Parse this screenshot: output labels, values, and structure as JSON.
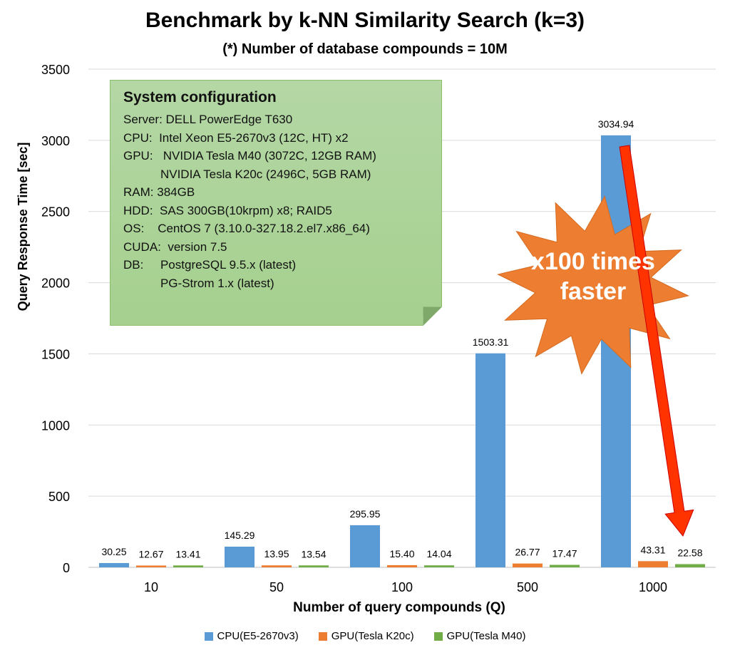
{
  "title": "Benchmark by k-NN Similarity Search (k=3)",
  "subtitle": "(*) Number of database compounds = 10M",
  "config": {
    "heading": "System configuration",
    "lines": [
      {
        "key": "Server: ",
        "value": "DELL PowerEdge T630"
      },
      {
        "key": "CPU:  ",
        "value": "Intel Xeon E5-2670v3 (12C, HT) x2"
      },
      {
        "key": "GPU:   ",
        "value": "NVIDIA Tesla M40 (3072C, 12GB RAM)"
      },
      {
        "key": "           ",
        "value": "NVIDIA Tesla K20c (2496C, 5GB RAM)"
      },
      {
        "key": "RAM: ",
        "value": "384GB"
      },
      {
        "key": "HDD:  ",
        "value": "SAS 300GB(10krpm) x8; RAID5"
      },
      {
        "key": "OS:    ",
        "value": "CentOS 7 (3.10.0-327.18.2.el7.x86_64)"
      },
      {
        "key": "CUDA:  ",
        "value": "version 7.5"
      },
      {
        "key": "DB:     ",
        "value": "PostgreSQL 9.5.x (latest)"
      },
      {
        "key": "           ",
        "value": "PG-Strom 1.x (latest)"
      }
    ]
  },
  "callout": {
    "line1": "x100 times",
    "line2": "faster",
    "star_color": "#ed7d31",
    "arrow_color": "#ff3300"
  },
  "chart_data": {
    "type": "bar",
    "title": "Benchmark by k-NN Similarity Search (k=3)",
    "subtitle": "(*) Number of database compounds = 10M",
    "xlabel": "Number of query compounds (Q)",
    "ylabel": "Query Response Time [sec]",
    "categories": [
      "10",
      "50",
      "100",
      "500",
      "1000"
    ],
    "ylim": [
      0,
      3500
    ],
    "yticks": [
      "0",
      "500",
      "1000",
      "1500",
      "2000",
      "2500",
      "3000",
      "3500"
    ],
    "grid": true,
    "legend_position": "bottom",
    "series": [
      {
        "name": "CPU(E5-2670v3)",
        "color": "#5b9bd5",
        "values": [
          30.25,
          145.29,
          295.95,
          1503.31,
          3034.94
        ],
        "labels": [
          "30.25",
          "145.29",
          "295.95",
          "1503.31",
          "3034.94"
        ]
      },
      {
        "name": "GPU(Tesla K20c)",
        "color": "#ed7d31",
        "values": [
          12.67,
          13.95,
          15.4,
          26.77,
          43.31
        ],
        "labels": [
          "12.67",
          "13.95",
          "15.40",
          "26.77",
          "43.31"
        ]
      },
      {
        "name": "GPU(Tesla M40)",
        "color": "#70ad47",
        "values": [
          13.41,
          13.54,
          14.04,
          17.47,
          22.58
        ],
        "labels": [
          "13.41",
          "13.54",
          "14.04",
          "17.47",
          "22.58"
        ]
      }
    ]
  }
}
